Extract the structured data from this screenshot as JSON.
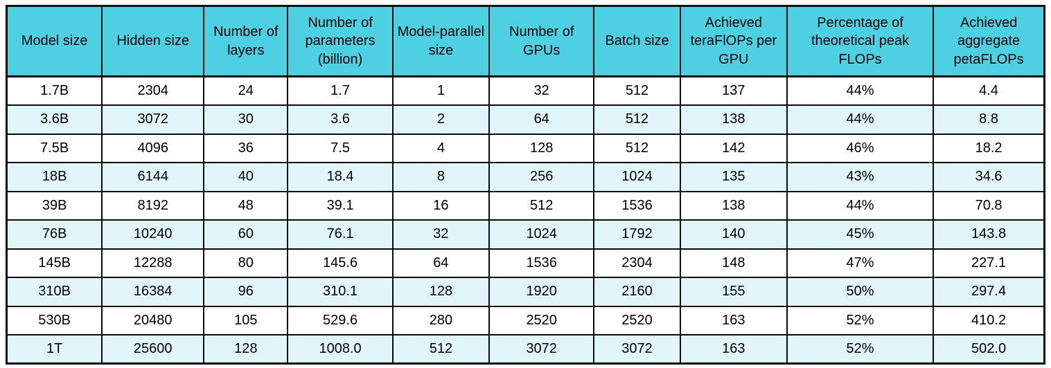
{
  "colors": {
    "header_bg": "#4dd0e1",
    "row_bg": "#ffffff",
    "row_alt_bg": "#e0f6fa",
    "border": "#0a0a0a",
    "text": "#000000"
  },
  "table": {
    "columns": [
      "Model size",
      "Hidden size",
      "Number of layers",
      "Number of parameters (billion)",
      "Model-parallel size",
      "Number of GPUs",
      "Batch size",
      "Achieved teraFlOPs per GPU",
      "Percentage of theoretical peak FLOPs",
      "Achieved aggregate petaFLOPs"
    ],
    "rows": [
      [
        "1.7B",
        "2304",
        "24",
        "1.7",
        "1",
        "32",
        "512",
        "137",
        "44%",
        "4.4"
      ],
      [
        "3.6B",
        "3072",
        "30",
        "3.6",
        "2",
        "64",
        "512",
        "138",
        "44%",
        "8.8"
      ],
      [
        "7.5B",
        "4096",
        "36",
        "7.5",
        "4",
        "128",
        "512",
        "142",
        "46%",
        "18.2"
      ],
      [
        "18B",
        "6144",
        "40",
        "18.4",
        "8",
        "256",
        "1024",
        "135",
        "43%",
        "34.6"
      ],
      [
        "39B",
        "8192",
        "48",
        "39.1",
        "16",
        "512",
        "1536",
        "138",
        "44%",
        "70.8"
      ],
      [
        "76B",
        "10240",
        "60",
        "76.1",
        "32",
        "1024",
        "1792",
        "140",
        "45%",
        "143.8"
      ],
      [
        "145B",
        "12288",
        "80",
        "145.6",
        "64",
        "1536",
        "2304",
        "148",
        "47%",
        "227.1"
      ],
      [
        "310B",
        "16384",
        "96",
        "310.1",
        "128",
        "1920",
        "2160",
        "155",
        "50%",
        "297.4"
      ],
      [
        "530B",
        "20480",
        "105",
        "529.6",
        "280",
        "2520",
        "2520",
        "163",
        "52%",
        "410.2"
      ],
      [
        "1T",
        "25600",
        "128",
        "1008.0",
        "512",
        "3072",
        "3072",
        "163",
        "52%",
        "502.0"
      ]
    ]
  },
  "chart_data": {
    "type": "table",
    "title": "",
    "columns": [
      "Model size",
      "Hidden size",
      "Number of layers",
      "Number of parameters (billion)",
      "Model-parallel size",
      "Number of GPUs",
      "Batch size",
      "Achieved teraFlOPs per GPU",
      "Percentage of theoretical peak FLOPs",
      "Achieved aggregate petaFLOPs"
    ],
    "rows": [
      [
        "1.7B",
        2304,
        24,
        1.7,
        1,
        32,
        512,
        137,
        "44%",
        4.4
      ],
      [
        "3.6B",
        3072,
        30,
        3.6,
        2,
        64,
        512,
        138,
        "44%",
        8.8
      ],
      [
        "7.5B",
        4096,
        36,
        7.5,
        4,
        128,
        512,
        142,
        "46%",
        18.2
      ],
      [
        "18B",
        6144,
        40,
        18.4,
        8,
        256,
        1024,
        135,
        "43%",
        34.6
      ],
      [
        "39B",
        8192,
        48,
        39.1,
        16,
        512,
        1536,
        138,
        "44%",
        70.8
      ],
      [
        "76B",
        10240,
        60,
        76.1,
        32,
        1024,
        1792,
        140,
        "45%",
        143.8
      ],
      [
        "145B",
        12288,
        80,
        145.6,
        64,
        1536,
        2304,
        148,
        "47%",
        227.1
      ],
      [
        "310B",
        16384,
        96,
        310.1,
        128,
        1920,
        2160,
        155,
        "50%",
        297.4
      ],
      [
        "530B",
        20480,
        105,
        529.6,
        280,
        2520,
        2520,
        163,
        "52%",
        410.2
      ],
      [
        "1T",
        25600,
        128,
        1008.0,
        512,
        3072,
        3072,
        163,
        "52%",
        502.0
      ]
    ],
    "layout_hints": {
      "header_fill": "#4dd0e1",
      "alternating_row_fill": "#e0f6fa",
      "grid": "on",
      "alt_rows_start_at_second_data_row": true
    }
  }
}
